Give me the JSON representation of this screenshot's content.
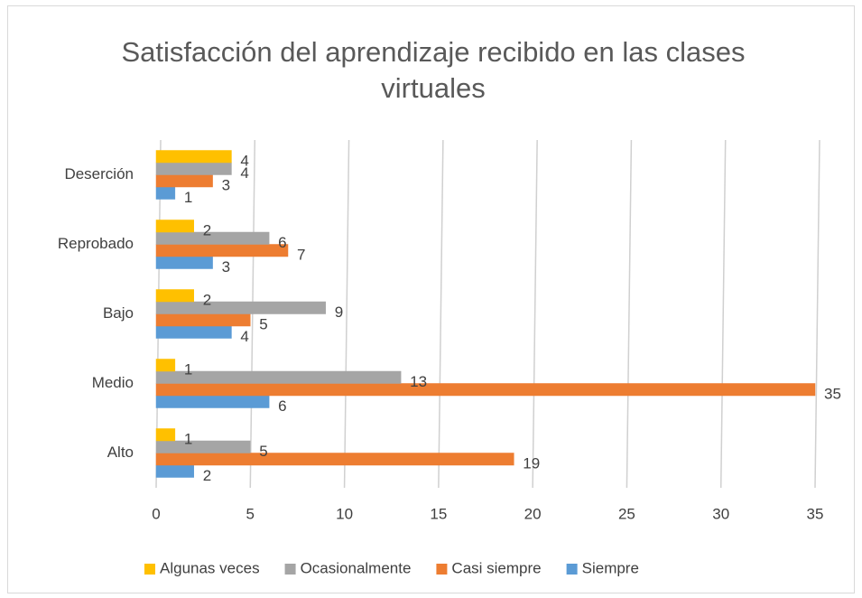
{
  "chart_data": {
    "type": "bar",
    "orientation": "horizontal",
    "title": "Satisfacción del aprendizaje recibido en las clases virtuales",
    "categories": [
      "Alto",
      "Medio",
      "Bajo",
      "Reprobado",
      "Deserción"
    ],
    "series": [
      {
        "name": "Siempre",
        "color": "#5b9bd5",
        "values": [
          2,
          6,
          4,
          3,
          1
        ]
      },
      {
        "name": "Casi siempre",
        "color": "#ed7d31",
        "values": [
          19,
          35,
          5,
          7,
          3
        ]
      },
      {
        "name": "Ocasionalmente",
        "color": "#a5a5a5",
        "values": [
          5,
          13,
          9,
          6,
          4
        ]
      },
      {
        "name": "Algunas veces",
        "color": "#ffc000",
        "values": [
          1,
          1,
          2,
          2,
          4
        ]
      }
    ],
    "xlim": [
      0,
      35
    ],
    "xticks": [
      0,
      5,
      10,
      15,
      20,
      25,
      30,
      35
    ],
    "grid": true,
    "legend": "bottom"
  }
}
